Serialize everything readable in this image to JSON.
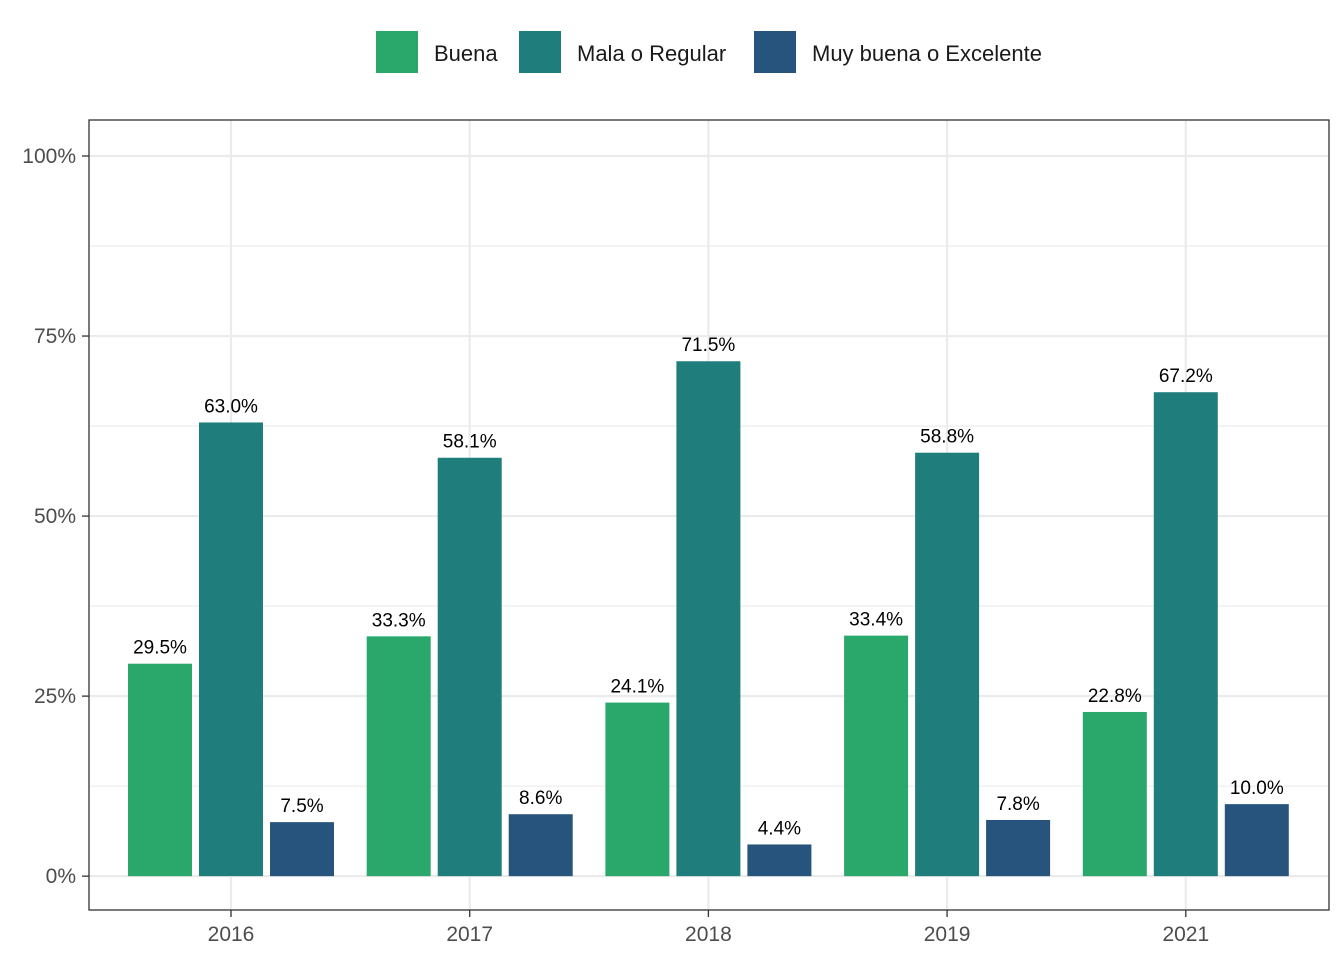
{
  "chart_data": {
    "type": "bar",
    "title": "",
    "xlabel": "",
    "ylabel": "",
    "categories": [
      "2016",
      "2017",
      "2018",
      "2019",
      "2021"
    ],
    "series": [
      {
        "name": "Buena",
        "color": "#2aa76a",
        "values": [
          29.5,
          33.3,
          24.1,
          33.4,
          22.8
        ],
        "labels": [
          "29.5%",
          "33.3%",
          "24.1%",
          "33.4%",
          "22.8%"
        ]
      },
      {
        "name": "Mala o Regular",
        "color": "#1f7e7c",
        "values": [
          63.0,
          58.1,
          71.5,
          58.8,
          67.2
        ],
        "labels": [
          "63.0%",
          "58.1%",
          "71.5%",
          "58.8%",
          "67.2%"
        ]
      },
      {
        "name": "Muy buena o Excelente",
        "color": "#26547c",
        "values": [
          7.5,
          8.6,
          4.4,
          7.8,
          10.0
        ],
        "labels": [
          "7.5%",
          "8.6%",
          "4.4%",
          "7.8%",
          "10.0%"
        ]
      }
    ],
    "ylim": [
      -4.7,
      105
    ],
    "y_ticks": [
      {
        "value": 0,
        "label": "0%"
      },
      {
        "value": 25,
        "label": "25%"
      },
      {
        "value": 50,
        "label": "50%"
      },
      {
        "value": 75,
        "label": "75%"
      },
      {
        "value": 100,
        "label": "100%"
      }
    ],
    "y_minor_ticks": [
      12.5,
      37.5,
      62.5,
      87.5
    ],
    "grid": true,
    "legend_position": "top",
    "background_color": "#ffffff",
    "grid_color": "#ebebeb",
    "border_color": "#333333"
  }
}
